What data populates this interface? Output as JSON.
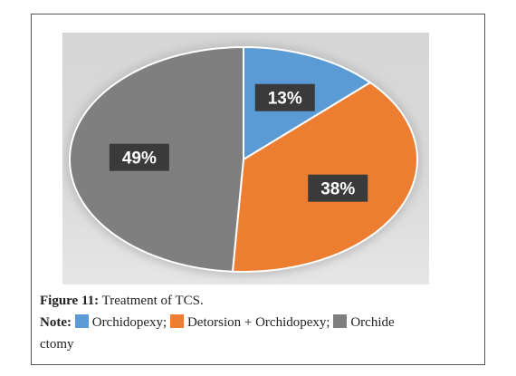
{
  "figure": {
    "caption_label": "Figure 11:",
    "caption_text": "Treatment of TCS.",
    "note_label": "Note:"
  },
  "legend": {
    "items": [
      {
        "label": "Orchidopexy;",
        "color": "#5b9bd5"
      },
      {
        "label": "Detorsion + Orchidopexy;",
        "color": "#ed7d31"
      },
      {
        "label": "Orchide",
        "color": "#7f7f7f"
      }
    ],
    "wrap_text": "ctomy"
  },
  "chart_data": {
    "type": "pie",
    "title": "",
    "slices": [
      {
        "label": "Orchidopexy",
        "value": 13,
        "display": "13%",
        "color": "#5b9bd5"
      },
      {
        "label": "Detorsion + Orchidopexy",
        "value": 38,
        "display": "38%",
        "color": "#ed7d31"
      },
      {
        "label": "Orchidectomy",
        "value": 49,
        "display": "49%",
        "color": "#7f7f7f"
      }
    ],
    "start_angle": "12 o'clock",
    "direction": "clockwise",
    "data_labels": "dark boxes with white text",
    "legend_position": "below chart, in caption"
  }
}
